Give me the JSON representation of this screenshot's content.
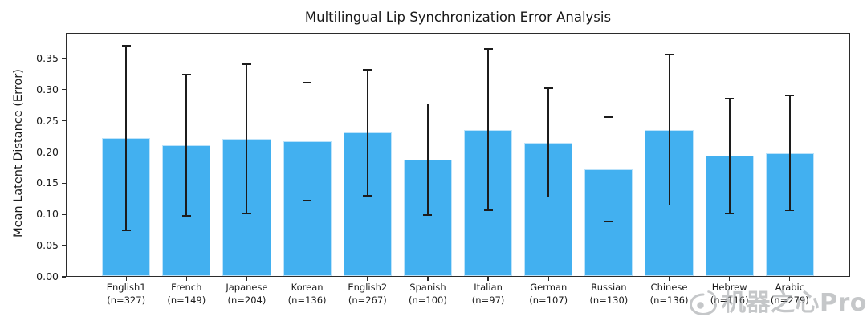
{
  "chart_data": {
    "type": "bar",
    "title": "Multilingual Lip Synchronization Error Analysis",
    "xlabel": "",
    "ylabel": "Mean Latent Distance (Error)",
    "categories": [
      "English1",
      "French",
      "Japanese",
      "Korean",
      "English2",
      "Spanish",
      "Italian",
      "German",
      "Russian",
      "Chinese",
      "Hebrew",
      "Arabic"
    ],
    "sample_sizes": [
      327,
      149,
      204,
      136,
      267,
      100,
      97,
      107,
      130,
      136,
      116,
      279
    ],
    "x_labels": [
      {
        "name": "English1",
        "n_label": "(n=327)"
      },
      {
        "name": "French",
        "n_label": "(n=149)"
      },
      {
        "name": "Japanese",
        "n_label": "(n=204)"
      },
      {
        "name": "Korean",
        "n_label": "(n=136)"
      },
      {
        "name": "English2",
        "n_label": "(n=267)"
      },
      {
        "name": "Spanish",
        "n_label": "(n=100)"
      },
      {
        "name": "Italian",
        "n_label": "(n=97)"
      },
      {
        "name": "German",
        "n_label": "(n=107)"
      },
      {
        "name": "Russian",
        "n_label": "(n=130)"
      },
      {
        "name": "Chinese",
        "n_label": "(n=136)"
      },
      {
        "name": "Hebrew",
        "n_label": "(n=116)"
      },
      {
        "name": "Arabic",
        "n_label": "(n=279)"
      }
    ],
    "values": [
      0.222,
      0.211,
      0.221,
      0.217,
      0.231,
      0.188,
      0.236,
      0.215,
      0.172,
      0.236,
      0.194,
      0.198
    ],
    "errors": [
      0.148,
      0.113,
      0.12,
      0.094,
      0.101,
      0.089,
      0.129,
      0.087,
      0.084,
      0.121,
      0.092,
      0.092
    ],
    "yticks": [
      0.0,
      0.05,
      0.1,
      0.15,
      0.2,
      0.25,
      0.3,
      0.35
    ],
    "ytick_labels": [
      "0.00",
      "0.05",
      "0.10",
      "0.15",
      "0.20",
      "0.25",
      "0.30",
      "0.35"
    ],
    "ylim": [
      0,
      0.391
    ],
    "grid": false,
    "legend": "none",
    "bar_color": "#42b0f0",
    "bar_edge_color": "#ffffff",
    "error_color": "#1c1c1c"
  },
  "watermark": {
    "icon": "weibo-eye-icon",
    "text": "机器之心Pro"
  }
}
